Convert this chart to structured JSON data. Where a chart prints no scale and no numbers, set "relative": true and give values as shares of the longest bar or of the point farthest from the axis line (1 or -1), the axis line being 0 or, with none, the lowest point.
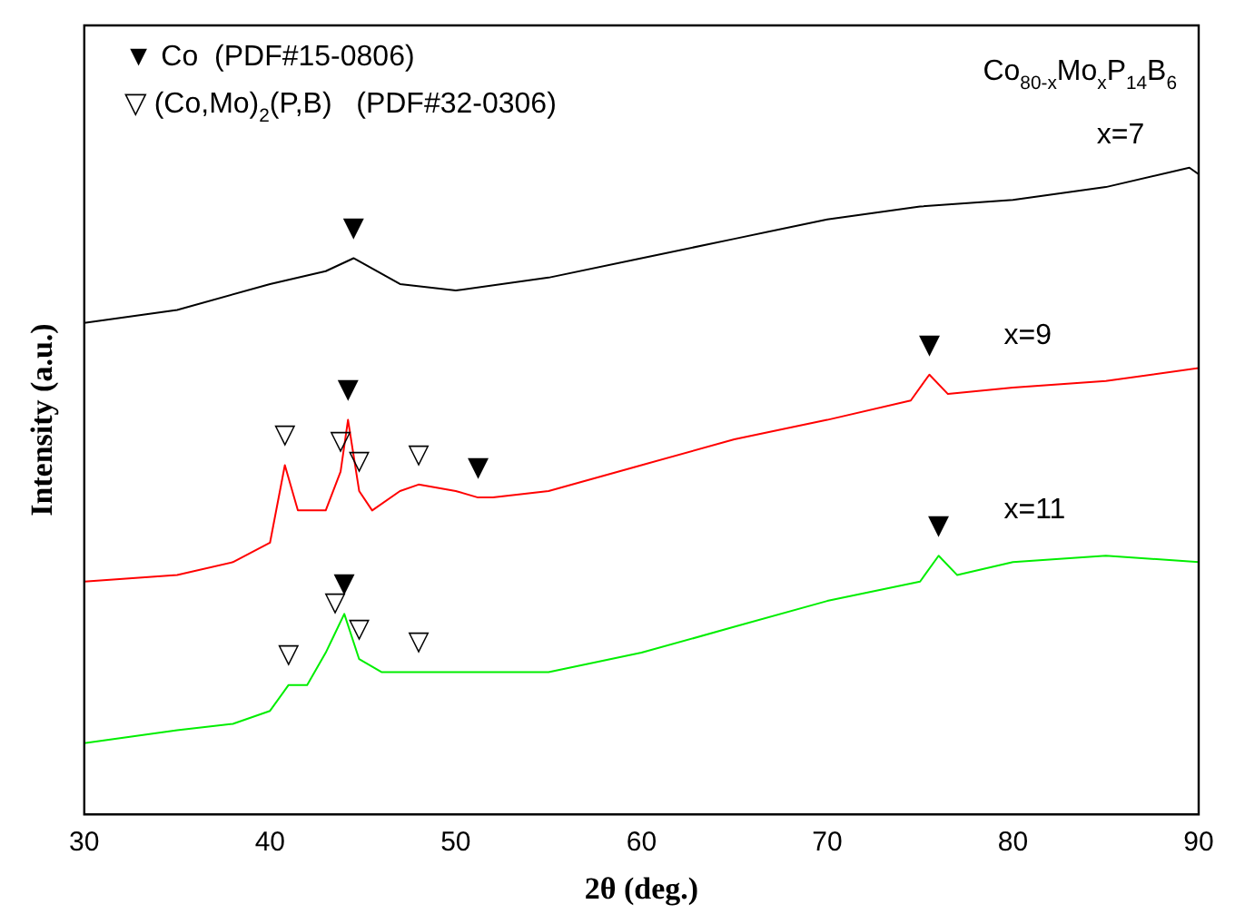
{
  "chart_data": {
    "type": "line",
    "relative": true,
    "xlabel": "2θ (deg.)",
    "ylabel": "Intensity (a.u.)",
    "xlim": [
      30,
      90
    ],
    "xticks": [
      30,
      40,
      50,
      60,
      70,
      80,
      90
    ],
    "tick_labels": "x",
    "grid": false,
    "legend": false,
    "marker": "none",
    "line_style": "solid",
    "series": [
      {
        "name": "x=7",
        "color": "#000000",
        "x": [
          30,
          35,
          40,
          43,
          44.5,
          47,
          50,
          55,
          60,
          65,
          70,
          75,
          80,
          85,
          89.5,
          90
        ],
        "values": [
          0.76,
          0.78,
          0.82,
          0.84,
          0.86,
          0.82,
          0.81,
          0.83,
          0.86,
          0.89,
          0.92,
          0.94,
          0.95,
          0.97,
          1.0,
          0.99
        ]
      },
      {
        "name": "x=9",
        "color": "#ff0000",
        "x": [
          30,
          35,
          38,
          40,
          40.8,
          41.5,
          43,
          43.8,
          44.2,
          44.8,
          45.5,
          47,
          48,
          50,
          51.2,
          52,
          55,
          60,
          65,
          70,
          74.5,
          75.5,
          76.5,
          80,
          85,
          90
        ],
        "values": [
          0.36,
          0.37,
          0.39,
          0.42,
          0.54,
          0.47,
          0.47,
          0.53,
          0.61,
          0.5,
          0.47,
          0.5,
          0.51,
          0.5,
          0.49,
          0.49,
          0.5,
          0.54,
          0.58,
          0.61,
          0.64,
          0.68,
          0.65,
          0.66,
          0.67,
          0.69
        ]
      },
      {
        "name": "x=11",
        "color": "#00ee00",
        "x": [
          30,
          35,
          38,
          40,
          41,
          42,
          43,
          43.5,
          44,
          44.8,
          46,
          48,
          50,
          55,
          60,
          65,
          70,
          75,
          76,
          77,
          80,
          85,
          90
        ],
        "values": [
          0.11,
          0.13,
          0.14,
          0.16,
          0.2,
          0.2,
          0.25,
          0.28,
          0.31,
          0.24,
          0.22,
          0.22,
          0.22,
          0.22,
          0.25,
          0.29,
          0.33,
          0.36,
          0.4,
          0.37,
          0.39,
          0.4,
          0.39
        ]
      }
    ],
    "annotations": [
      "▼ Co  (PDF#15-0806)",
      "▽ (Co,Mo)$_{2}$(P,B)   (PDF#32-0306)",
      "Co$_{80-x}$Mo$_{x}$P$_{14}$B$_{6}$",
      {
        "text": "▼",
        "x": 44.5,
        "y": 0.86
      },
      {
        "text": "▽",
        "x": 40.8,
        "y": 0.54
      },
      {
        "text": "▽",
        "x": 43.8,
        "y": 0.53
      },
      {
        "text": "▼",
        "x": 44.2,
        "y": 0.61
      },
      {
        "text": "▽",
        "x": 44.8,
        "y": 0.5
      },
      {
        "text": "▽",
        "x": 48,
        "y": 0.51
      },
      {
        "text": "▼",
        "x": 51.2,
        "y": 0.49
      },
      {
        "text": "▼",
        "x": 75.5,
        "y": 0.68
      },
      {
        "text": "▽",
        "x": 41,
        "y": 0.2
      },
      {
        "text": "▽",
        "x": 43.5,
        "y": 0.28
      },
      {
        "text": "▼",
        "x": 44,
        "y": 0.31
      },
      {
        "text": "▽",
        "x": 44.8,
        "y": 0.24
      },
      {
        "text": "▽",
        "x": 48,
        "y": 0.22
      },
      {
        "text": "▼",
        "x": 76,
        "y": 0.4
      }
    ]
  }
}
